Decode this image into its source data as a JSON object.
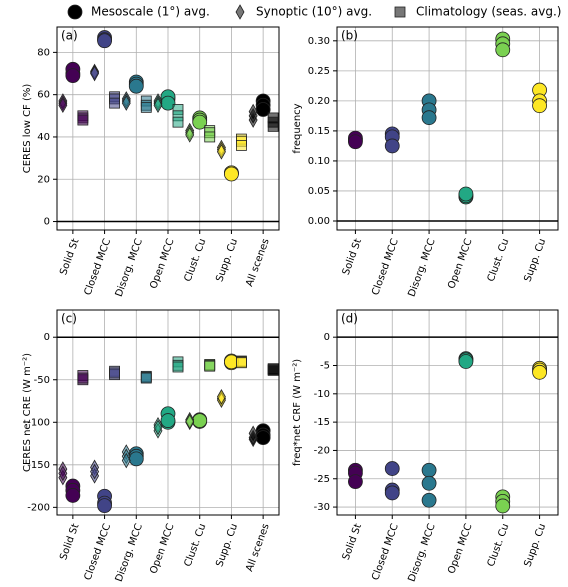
{
  "legend": {
    "position": "top"
  },
  "chart_data": [
    {
      "type": "scatter",
      "label": "(a)",
      "ylabel": "CERES low CF (%)",
      "categories": [
        "Solid St",
        "Closed MCC",
        "Disorg. MCC",
        "Open MCC",
        "Clust. Cu",
        "Supp. Cu",
        "All scenes"
      ],
      "colors": [
        "#440154",
        "#414487",
        "#2a788e",
        "#22a884",
        "#7ad151",
        "#fde725",
        "#000000"
      ],
      "ylim": [
        -4,
        92
      ],
      "yticks": [
        0,
        20,
        40,
        60,
        80
      ],
      "grid": true,
      "series": [
        {
          "name": "Mesoscale (1°) avg.",
          "marker": "circle",
          "opacity": 1,
          "legend_color": "#000000",
          "values": [
            [
              70,
              72,
              69
            ],
            [
              87,
              86,
              85.5
            ],
            [
              66,
              65,
              64
            ],
            [
              58,
              59,
              56
            ],
            [
              49,
              48,
              47
            ],
            [
              23,
              23,
              22.5
            ],
            [
              57,
              55,
              53
            ]
          ]
        },
        {
          "name": "Synoptic (10°) avg.",
          "marker": "diamond",
          "opacity": 0.55,
          "legend_color": "#777777",
          "values": [
            [
              57,
              56,
              55
            ],
            [
              71,
              70.5,
              70
            ],
            [
              58,
              57,
              56
            ],
            [
              57,
              56,
              55
            ],
            [
              43,
              42,
              41
            ],
            [
              35,
              34,
              33
            ],
            [
              52,
              50,
              48
            ]
          ]
        },
        {
          "name": "Climatology (seas. avg.)",
          "marker": "square",
          "opacity": 0.55,
          "legend_color": "#777777",
          "values": [
            [
              50,
              49,
              48
            ],
            [
              59,
              58,
              56
            ],
            [
              57,
              55,
              54
            ],
            [
              53,
              50,
              47
            ],
            [
              43,
              42,
              40
            ],
            [
              39,
              38,
              36
            ],
            [
              49,
              47,
              45
            ]
          ]
        }
      ]
    },
    {
      "type": "scatter",
      "label": "(b)",
      "ylabel": "frequency",
      "categories": [
        "Solid St",
        "Closed MCC",
        "Disorg. MCC",
        "Open MCC",
        "Clust. Cu",
        "Supp. Cu"
      ],
      "colors": [
        "#440154",
        "#414487",
        "#2a788e",
        "#22a884",
        "#7ad151",
        "#fde725"
      ],
      "ylim": [
        -0.015,
        0.323
      ],
      "yticks": [
        {
          "value": 0,
          "label": "0.00"
        },
        {
          "value": 0.05,
          "label": "0.05"
        },
        {
          "value": 0.1,
          "label": "0.10"
        },
        {
          "value": 0.15,
          "label": "0.15"
        },
        {
          "value": 0.2,
          "label": "0.20"
        },
        {
          "value": 0.25,
          "label": "0.25"
        },
        {
          "value": 0.3,
          "label": "0.30"
        }
      ],
      "grid": true,
      "series": [
        {
          "marker": "circle",
          "opacity": 1,
          "values": [
            [
              0.135,
              0.138,
              0.132
            ],
            [
              0.145,
              0.14,
              0.125
            ],
            [
              0.2,
              0.185,
              0.172
            ],
            [
              0.04,
              0.042,
              0.045
            ],
            [
              0.303,
              0.295,
              0.285
            ],
            [
              0.218,
              0.2,
              0.192
            ]
          ]
        }
      ]
    },
    {
      "type": "scatter",
      "label": "(c)",
      "ylabel": "CERES net CRE (W m⁻²)",
      "categories": [
        "Solid St",
        "Closed MCC",
        "Disorg. MCC",
        "Open MCC",
        "Clust. Cu",
        "Supp. Cu",
        "All scenes"
      ],
      "colors": [
        "#440154",
        "#414487",
        "#2a788e",
        "#22a884",
        "#7ad151",
        "#fde725",
        "#000000"
      ],
      "ylim": [
        -209,
        32
      ],
      "yticks": [
        -200,
        -150,
        -100,
        -50,
        0
      ],
      "grid": true,
      "series": [
        {
          "marker": "circle",
          "opacity": 1,
          "values": [
            [
              -175,
              -180,
              -186
            ],
            [
              -187,
              -195,
              -198
            ],
            [
              -137,
              -140,
              -143
            ],
            [
              -90,
              -100,
              -98
            ],
            [
              -97,
              -99,
              -98
            ],
            [
              -28,
              -30,
              -29
            ],
            [
              -110,
              -115,
              -118
            ]
          ]
        },
        {
          "marker": "diamond",
          "opacity": 0.55,
          "values": [
            [
              -155,
              -165,
              -160
            ],
            [
              -153,
              -163,
              -158
            ],
            [
              -135,
              -140,
              -145
            ],
            [
              -103,
              -110,
              -106
            ],
            [
              -97,
              -100,
              -99
            ],
            [
              -72,
              -74,
              -70
            ],
            [
              -113,
              -118,
              -120
            ]
          ]
        },
        {
          "marker": "square",
          "opacity": 0.55,
          "values": [
            [
              -45,
              -50,
              -48
            ],
            [
              -40,
              -44,
              -42
            ],
            [
              -46,
              -47,
              -48
            ],
            [
              -29,
              -33,
              -35
            ],
            [
              -32,
              -33,
              -34
            ],
            [
              -28,
              -29,
              -30
            ],
            [
              -37,
              -38,
              -39
            ]
          ]
        }
      ]
    },
    {
      "type": "scatter",
      "label": "(d)",
      "ylabel": "freq*net CRF (W m⁻²)",
      "categories": [
        "Solid St",
        "Closed MCC",
        "Disorg. MCC",
        "Open MCC",
        "Clust. Cu",
        "Supp. Cu"
      ],
      "colors": [
        "#440154",
        "#414487",
        "#2a788e",
        "#22a884",
        "#7ad151",
        "#fde725"
      ],
      "ylim": [
        -31.4,
        4.8
      ],
      "yticks": [
        -30,
        -25,
        -20,
        -15,
        -10,
        -5,
        0
      ],
      "grid": true,
      "series": [
        {
          "marker": "circle",
          "opacity": 1,
          "values": [
            [
              -23.5,
              -24,
              -25.5
            ],
            [
              -23.2,
              -27,
              -27.5
            ],
            [
              -23.5,
              -25.8,
              -28.8
            ],
            [
              -3.8,
              -4,
              -4.3
            ],
            [
              -28.2,
              -29,
              -29.8
            ],
            [
              -5.5,
              -5.8,
              -6.2
            ]
          ]
        }
      ]
    }
  ]
}
